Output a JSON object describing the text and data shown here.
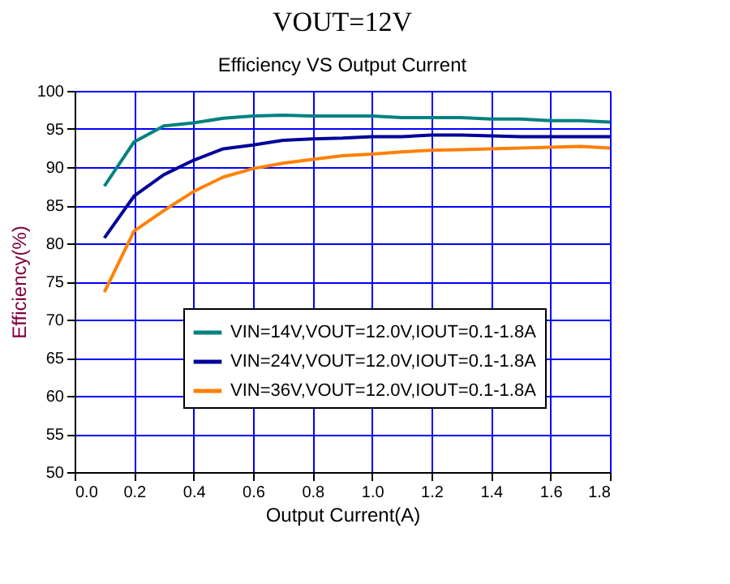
{
  "chart_data": {
    "type": "line",
    "title": "VOUT=12V",
    "subtitle": "Efficiency VS Output Current",
    "xlabel": "Output Current(A)",
    "ylabel": "Efficiency(%)",
    "x": [
      0.1,
      0.2,
      0.3,
      0.4,
      0.5,
      0.6,
      0.7,
      0.8,
      0.9,
      1.0,
      1.1,
      1.2,
      1.3,
      1.4,
      1.5,
      1.6,
      1.7,
      1.8
    ],
    "series": [
      {
        "name": "VIN=14V,VOUT=12.0V,IOUT=0.1-1.8A",
        "color": "#008080",
        "values": [
          87.5,
          93.3,
          95.4,
          95.8,
          96.4,
          96.7,
          96.8,
          96.7,
          96.7,
          96.7,
          96.5,
          96.5,
          96.5,
          96.3,
          96.3,
          96.1,
          96.1,
          95.9
        ]
      },
      {
        "name": "VIN=24V,VOUT=12.0V,IOUT=0.1-1.8A",
        "color": "#000099",
        "values": [
          80.7,
          86.2,
          89.0,
          90.9,
          92.4,
          92.9,
          93.5,
          93.7,
          93.8,
          94.0,
          94.0,
          94.2,
          94.2,
          94.1,
          94.0,
          94.0,
          94.0,
          94.0
        ]
      },
      {
        "name": "VIN=36V,VOUT=12.0V,IOUT=0.1-1.8A",
        "color": "#ff8000",
        "values": [
          73.6,
          81.6,
          84.3,
          86.8,
          88.7,
          89.8,
          90.5,
          91.0,
          91.5,
          91.7,
          92.0,
          92.2,
          92.3,
          92.4,
          92.5,
          92.6,
          92.7,
          92.5
        ]
      }
    ],
    "xlim": [
      0.0,
      1.8
    ],
    "xticks": [
      {
        "value": 0,
        "label": "0.0"
      },
      0.2,
      0.4,
      0.6,
      0.8,
      {
        "value": 1,
        "label": "1.0"
      },
      1.2,
      1.4,
      1.6,
      1.8
    ],
    "ylim": [
      50,
      100
    ],
    "yticks": [
      50,
      55,
      60,
      65,
      70,
      75,
      80,
      85,
      90,
      95,
      100
    ],
    "grid": true,
    "legend": "bottom right",
    "marker": "none",
    "line_style": "solid"
  }
}
